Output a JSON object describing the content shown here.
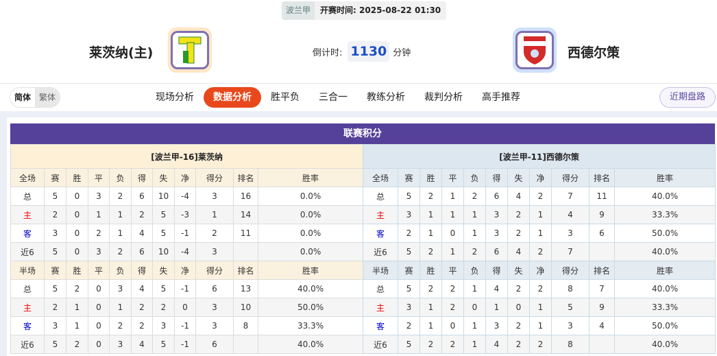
{
  "match": {
    "league": "波兰甲",
    "kickoff_label": "开赛时间:",
    "kickoff": "2025-08-22 01:30"
  },
  "home": {
    "name": "莱茨纳(主)",
    "logo_color": "#f2e318"
  },
  "away": {
    "name": "西德尔策",
    "logo_color": "#d42a2a"
  },
  "countdown": {
    "label": "倒计时:",
    "value": "1130",
    "unit": "分钟"
  },
  "nav": {
    "lang": [
      "简体",
      "繁体"
    ],
    "tabs": [
      "现场分析",
      "数据分析",
      "胜平负",
      "三合一",
      "教练分析",
      "裁判分析",
      "高手推荐"
    ],
    "active": 1,
    "recent": "近期盘路"
  },
  "standings": {
    "title": "联赛积分",
    "cols": [
      "赛",
      "胜",
      "平",
      "负",
      "得",
      "失",
      "净",
      "得分",
      "排名",
      "胜率"
    ],
    "tables": [
      {
        "caption": "[波兰甲-16]莱茨纳",
        "sections": [
          {
            "label": "全场",
            "rows": [
              [
                "总",
                "5",
                "0",
                "3",
                "2",
                "6",
                "10",
                "-4",
                "3",
                "16",
                "0.0%"
              ],
              [
                "主",
                "2",
                "0",
                "1",
                "1",
                "2",
                "5",
                "-3",
                "1",
                "14",
                "0.0%"
              ],
              [
                "客",
                "3",
                "0",
                "2",
                "1",
                "4",
                "5",
                "-1",
                "2",
                "11",
                "0.0%"
              ],
              [
                "近6",
                "5",
                "0",
                "3",
                "2",
                "6",
                "10",
                "-4",
                "3",
                "",
                "0.0%"
              ]
            ]
          },
          {
            "label": "半场",
            "rows": [
              [
                "总",
                "5",
                "2",
                "0",
                "3",
                "4",
                "5",
                "-1",
                "6",
                "13",
                "40.0%"
              ],
              [
                "主",
                "2",
                "1",
                "0",
                "1",
                "2",
                "2",
                "0",
                "3",
                "10",
                "50.0%"
              ],
              [
                "客",
                "3",
                "1",
                "0",
                "2",
                "2",
                "3",
                "-1",
                "3",
                "8",
                "33.3%"
              ],
              [
                "近6",
                "5",
                "2",
                "0",
                "3",
                "4",
                "5",
                "-1",
                "6",
                "",
                "40.0%"
              ]
            ]
          }
        ]
      },
      {
        "caption": "[波兰甲-11]西德尔策",
        "sections": [
          {
            "label": "全场",
            "rows": [
              [
                "总",
                "5",
                "2",
                "1",
                "2",
                "6",
                "4",
                "2",
                "7",
                "11",
                "40.0%"
              ],
              [
                "主",
                "3",
                "1",
                "1",
                "1",
                "3",
                "2",
                "1",
                "4",
                "9",
                "33.3%"
              ],
              [
                "客",
                "2",
                "1",
                "0",
                "1",
                "3",
                "2",
                "1",
                "3",
                "6",
                "50.0%"
              ],
              [
                "近6",
                "5",
                "2",
                "1",
                "2",
                "6",
                "4",
                "2",
                "7",
                "",
                "40.0%"
              ]
            ]
          },
          {
            "label": "半场",
            "rows": [
              [
                "总",
                "5",
                "2",
                "2",
                "1",
                "4",
                "2",
                "2",
                "8",
                "7",
                "40.0%"
              ],
              [
                "主",
                "3",
                "1",
                "2",
                "0",
                "1",
                "0",
                "1",
                "5",
                "9",
                "33.3%"
              ],
              [
                "客",
                "2",
                "1",
                "0",
                "1",
                "3",
                "2",
                "1",
                "3",
                "4",
                "50.0%"
              ],
              [
                "近6",
                "5",
                "2",
                "2",
                "1",
                "4",
                "2",
                "2",
                "8",
                "",
                "40.0%"
              ]
            ]
          }
        ]
      }
    ]
  }
}
